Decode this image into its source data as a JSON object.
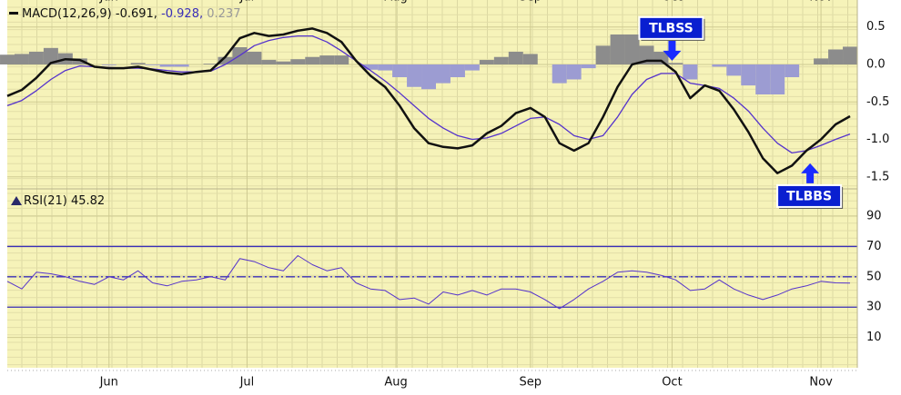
{
  "chart_data": [
    {
      "type": "line",
      "indicator": "MACD(12,26,9)",
      "x": [
        0,
        2,
        4,
        6,
        8,
        10,
        12,
        14,
        16,
        18,
        20,
        22,
        24,
        26,
        28,
        30,
        32,
        34,
        36,
        38,
        40,
        42,
        44,
        46,
        48,
        50,
        52,
        54,
        56,
        58,
        60,
        62,
        64,
        66,
        68,
        70,
        72,
        74,
        76,
        78,
        80,
        82,
        84,
        86,
        88,
        90,
        92,
        94,
        96,
        98,
        100,
        102,
        104,
        106,
        108,
        110,
        112,
        114,
        116
      ],
      "xlim": [
        0,
        117
      ],
      "ylim": [
        -1.66,
        0.86
      ],
      "yticks": [
        0.5,
        {
          "value": 0,
          "label": "0.0"
        },
        -0.5,
        {
          "value": -1,
          "label": "-1.0"
        },
        -1.5
      ],
      "series": [
        {
          "type": "bar",
          "color": "#8c8c8c",
          "negative_color": "#9c9cd2",
          "last_value_label": "0.237",
          "values": [
            0.13,
            0.14,
            0.17,
            0.22,
            0.15,
            0.08,
            0.0,
            -0.01,
            0.0,
            0.02,
            -0.01,
            -0.03,
            -0.03,
            0.0,
            0.01,
            0.1,
            0.23,
            0.17,
            0.06,
            0.04,
            0.07,
            0.1,
            0.12,
            0.12,
            0.0,
            -0.07,
            -0.08,
            -0.17,
            -0.3,
            -0.33,
            -0.25,
            -0.17,
            -0.08,
            0.06,
            0.1,
            0.17,
            0.14,
            0.0,
            -0.25,
            -0.2,
            -0.05,
            0.25,
            0.4,
            0.4,
            0.25,
            0.17,
            0.02,
            -0.2,
            0.0,
            -0.03,
            -0.15,
            -0.28,
            -0.4,
            -0.4,
            -0.17,
            0.0,
            0.08,
            0.2,
            0.237
          ]
        },
        {
          "type": "line",
          "color": "#5533cc",
          "width": 1.3,
          "last_value_label": "-0.928,",
          "values": [
            -0.55,
            -0.48,
            -0.35,
            -0.2,
            -0.08,
            -0.02,
            -0.03,
            -0.04,
            -0.05,
            -0.05,
            -0.06,
            -0.08,
            -0.1,
            -0.1,
            -0.09,
            0.0,
            0.12,
            0.25,
            0.32,
            0.36,
            0.38,
            0.38,
            0.3,
            0.18,
            0.05,
            -0.08,
            -0.22,
            -0.38,
            -0.55,
            -0.72,
            -0.85,
            -0.95,
            -1.0,
            -0.98,
            -0.92,
            -0.82,
            -0.72,
            -0.7,
            -0.8,
            -0.95,
            -1.0,
            -0.95,
            -0.7,
            -0.4,
            -0.2,
            -0.12,
            -0.12,
            -0.25,
            -0.28,
            -0.32,
            -0.45,
            -0.62,
            -0.85,
            -1.05,
            -1.18,
            -1.15,
            -1.08,
            -1.0,
            -0.928
          ]
        },
        {
          "type": "line",
          "color": "#111111",
          "width": 2.5,
          "last_value_label": "-0.691,",
          "values": [
            -0.42,
            -0.34,
            -0.18,
            0.02,
            0.07,
            0.06,
            -0.03,
            -0.05,
            -0.05,
            -0.03,
            -0.07,
            -0.11,
            -0.13,
            -0.1,
            -0.08,
            0.1,
            0.35,
            0.42,
            0.38,
            0.4,
            0.45,
            0.48,
            0.42,
            0.3,
            0.05,
            -0.15,
            -0.3,
            -0.55,
            -0.85,
            -1.05,
            -1.1,
            -1.12,
            -1.08,
            -0.92,
            -0.82,
            -0.65,
            -0.58,
            -0.7,
            -1.05,
            -1.15,
            -1.05,
            -0.7,
            -0.3,
            0.0,
            0.05,
            0.05,
            -0.1,
            -0.45,
            -0.28,
            -0.35,
            -0.6,
            -0.9,
            -1.25,
            -1.45,
            -1.35,
            -1.15,
            -1.0,
            -0.8,
            -0.691
          ]
        }
      ],
      "annotations": [
        {
          "text": "TLBSS",
          "x": 91.5,
          "y": 0.05,
          "direction": "down"
        },
        {
          "text": "TLBBS",
          "x": 110.5,
          "y": -1.32,
          "direction": "up"
        }
      ]
    },
    {
      "type": "line",
      "indicator": "RSI(21)",
      "x": [
        0,
        2,
        4,
        6,
        8,
        10,
        12,
        14,
        16,
        18,
        20,
        22,
        24,
        26,
        28,
        30,
        32,
        34,
        36,
        38,
        40,
        42,
        44,
        46,
        48,
        50,
        52,
        54,
        56,
        58,
        60,
        62,
        64,
        66,
        68,
        70,
        72,
        74,
        76,
        78,
        80,
        82,
        84,
        86,
        88,
        90,
        92,
        94,
        96,
        98,
        100,
        102,
        104,
        106,
        108,
        110,
        112,
        114,
        116
      ],
      "xlim": [
        0,
        117
      ],
      "ylim": [
        -10,
        108
      ],
      "xticks": [
        {
          "value": 14,
          "label": "Jun"
        },
        {
          "value": 33,
          "label": "Jul"
        },
        {
          "value": 53.5,
          "label": "Aug"
        },
        {
          "value": 72,
          "label": "Sep"
        },
        {
          "value": 91.5,
          "label": "Oct"
        },
        {
          "value": 112,
          "label": "Nov"
        }
      ],
      "yticks": [
        90,
        70,
        50,
        30,
        10
      ],
      "hlines": [
        {
          "value": 70,
          "style": "solid"
        },
        {
          "value": 50,
          "style": "dashdot"
        },
        {
          "value": 30,
          "style": "solid"
        }
      ],
      "hline_color": "#3a2fb8",
      "series": [
        {
          "type": "line",
          "color": "#5533cc",
          "width": 1,
          "last_value_label": "45.82",
          "values": [
            47,
            42,
            53,
            52,
            50,
            47,
            45,
            50,
            48,
            54,
            46,
            44,
            47,
            48,
            50,
            48,
            62,
            60,
            56,
            54,
            64,
            58,
            54,
            56,
            46,
            42,
            41,
            35,
            36,
            32,
            40,
            38,
            41,
            38,
            42,
            42,
            40,
            35,
            29,
            35,
            42,
            47,
            53,
            54,
            53,
            51,
            48,
            41,
            42,
            48,
            42,
            38,
            35,
            38,
            42,
            44,
            47,
            46,
            45.82
          ]
        }
      ]
    }
  ]
}
